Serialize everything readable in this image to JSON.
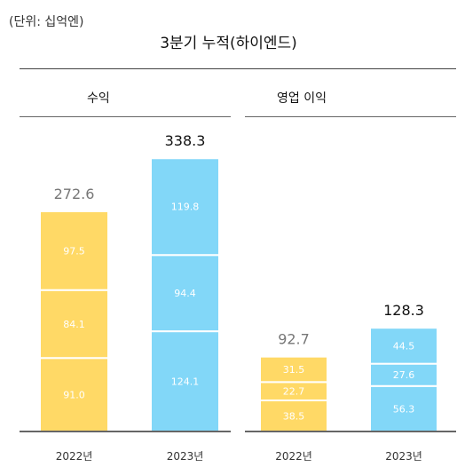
{
  "unit_label": "(단위: 십억엔)",
  "title": "3분기 누적(하이엔드)",
  "colors": {
    "2022": "#FFD966",
    "2023": "#82D7F8",
    "axis": "#333333",
    "total_2022": "#777777",
    "total_2023": "#111111"
  },
  "chart_data": [
    {
      "type": "bar",
      "stacked": true,
      "title": "수익",
      "categories": [
        "2022년",
        "2023년"
      ],
      "stacks": [
        [
          91.0,
          84.1,
          97.5
        ],
        [
          124.1,
          94.4,
          119.8
        ]
      ],
      "stack_labels": [
        [
          "91.0",
          "84.1",
          "97.5"
        ],
        [
          "124.1",
          "94.4",
          "119.8"
        ]
      ],
      "totals": [
        272.6,
        338.3
      ],
      "total_labels": [
        "272.6",
        "338.3"
      ]
    },
    {
      "type": "bar",
      "stacked": true,
      "title": "영업 이익",
      "categories": [
        "2022년",
        "2023년"
      ],
      "stacks": [
        [
          38.5,
          22.7,
          31.5
        ],
        [
          56.3,
          27.6,
          44.5
        ]
      ],
      "stack_labels": [
        [
          "38.5",
          "22.7",
          "31.5"
        ],
        [
          "56.3",
          "27.6",
          "44.5"
        ]
      ],
      "totals": [
        92.7,
        128.3
      ],
      "total_labels": [
        "92.7",
        "128.3"
      ]
    }
  ]
}
